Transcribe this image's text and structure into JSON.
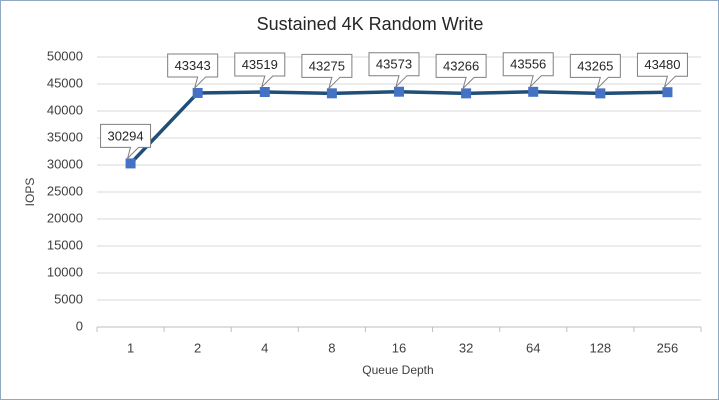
{
  "chart_data": {
    "type": "line",
    "title": "Sustained 4K Random Write",
    "x_label": "Queue Depth",
    "y_label": "IOPS",
    "categories": [
      "1",
      "2",
      "4",
      "8",
      "16",
      "32",
      "64",
      "128",
      "256"
    ],
    "values": [
      30294,
      43343,
      43519,
      43275,
      43573,
      43266,
      43556,
      43265,
      43480
    ],
    "color": "#1f4e79",
    "marker_color": "#4472c4",
    "ylim": [
      0,
      50000
    ],
    "yticks": [
      0,
      5000,
      10000,
      15000,
      20000,
      25000,
      30000,
      35000,
      40000,
      45000,
      50000
    ],
    "grid": true,
    "data_labels": true
  }
}
